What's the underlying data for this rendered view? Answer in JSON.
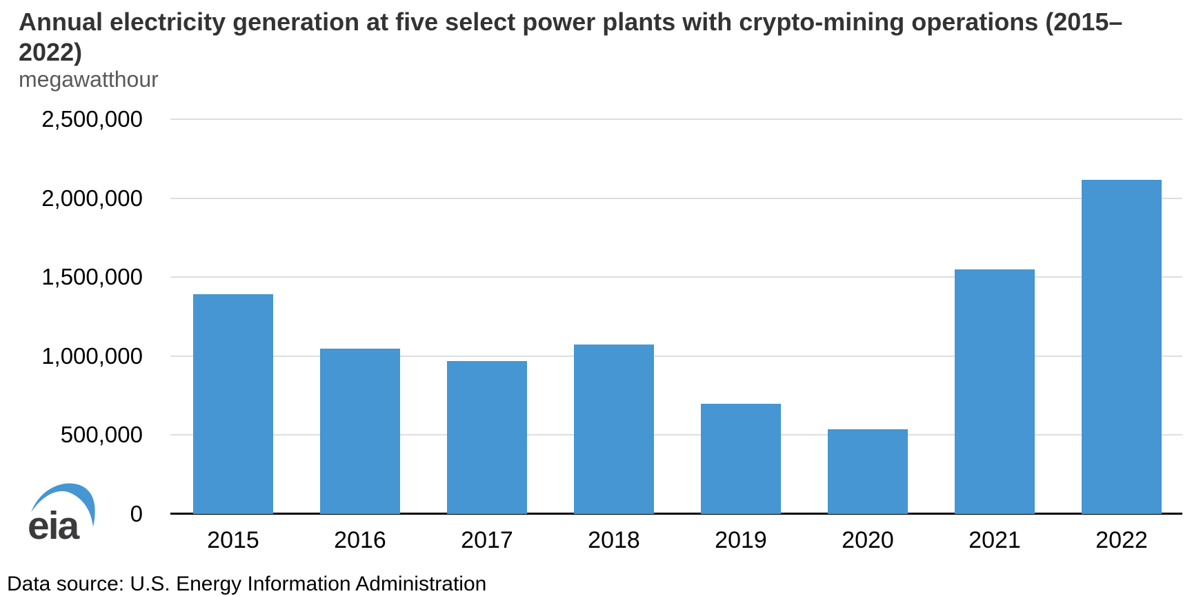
{
  "title": {
    "text": "Annual electricity generation at five select power plants with crypto-mining operations (2015–2022)",
    "line1": "Annual electricity generation at five select power plants with crypto-mining operations (2015–",
    "line2": "2022)"
  },
  "subtitle": "megawatthour",
  "footer": {
    "text": "Data source: U.S. Energy Information Administration"
  },
  "logo": {
    "text": "eia"
  },
  "colors": {
    "bar": "#4596d2",
    "gridline": "#dedede",
    "axis_line": "#000000",
    "title_text": "#333333",
    "subtitle_text": "#58595b",
    "logo_swoosh": "#4596d2",
    "logo_text": "#3b3b3d"
  },
  "chart_data": {
    "type": "bar",
    "title": "Annual electricity generation at five select power plants with crypto-mining operations (2015–2022)",
    "ylabel": "megawatthour",
    "xlabel": "",
    "categories": [
      "2015",
      "2016",
      "2017",
      "2018",
      "2019",
      "2020",
      "2021",
      "2022"
    ],
    "values": [
      1390000,
      1045000,
      970000,
      1075000,
      700000,
      535000,
      1550000,
      2115000
    ],
    "ylim": [
      0,
      2500000
    ],
    "grid": true,
    "legend_position": "none",
    "y_ticks": [
      {
        "value": 0,
        "label": "0"
      },
      {
        "value": 500000,
        "label": "500,000"
      },
      {
        "value": 1000000,
        "label": "1,000,000"
      },
      {
        "value": 1500000,
        "label": "1,500,000"
      },
      {
        "value": 2000000,
        "label": "2,000,000"
      },
      {
        "value": 2500000,
        "label": "2,500,000"
      }
    ]
  }
}
